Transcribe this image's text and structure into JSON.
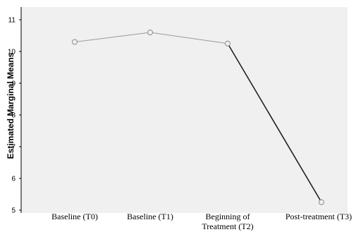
{
  "chart_data": {
    "type": "line",
    "categories": [
      "Baseline (T0)",
      "Baseline (T1)",
      "Beginning of Treatment (T2)",
      "Post-treatment (T3)"
    ],
    "category_label_lines": [
      [
        "Baseline (T0)"
      ],
      [
        "Baseline (T1)"
      ],
      [
        "Beginning of",
        "Treatment (T2)"
      ],
      [
        "Post-treatment (T3)"
      ]
    ],
    "series": [
      {
        "values": [
          10.3,
          10.6,
          10.25,
          5.25
        ]
      }
    ],
    "ylabel": "Estimated Marginal Means",
    "ylim": [
      5,
      11
    ],
    "yticks": [
      11,
      10,
      9,
      8,
      7,
      6,
      5
    ],
    "ytick_labels": [
      "11",
      "10",
      "9",
      "8",
      "7",
      "6",
      "5"
    ],
    "grid": false,
    "legend": "none",
    "colors": {
      "plot_background": "#f0f0f0",
      "line": "#9a9a9a",
      "emphasis_line": "#222222",
      "marker": "#8a8a8a"
    }
  }
}
